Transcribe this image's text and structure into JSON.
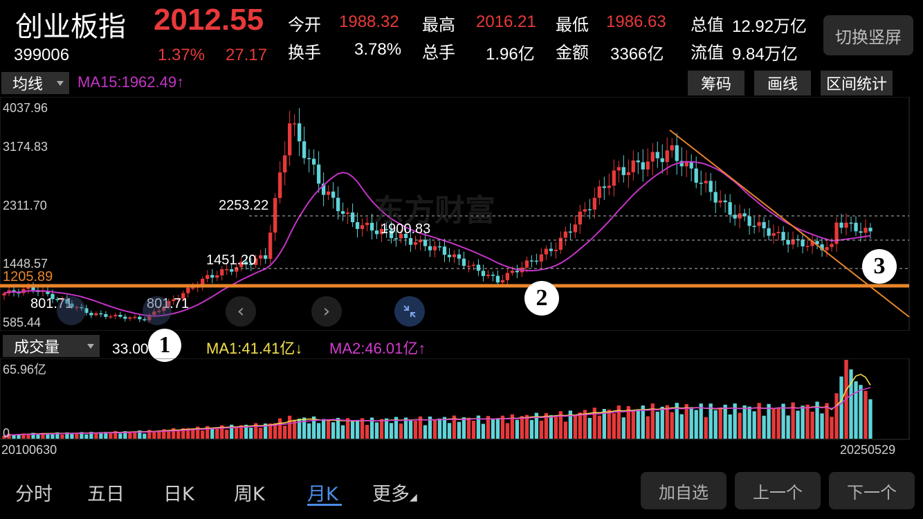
{
  "header": {
    "name": "创业板指",
    "price": "2012.55",
    "code": "399006",
    "change_pct": "1.37%",
    "change": "27.17",
    "stats": [
      {
        "label": "今开",
        "value": "1988.32",
        "red": true
      },
      {
        "label": "最高",
        "value": "2016.21",
        "red": true
      },
      {
        "label": "最低",
        "value": "1986.63",
        "red": true
      },
      {
        "label": "总值",
        "value": "12.92万亿",
        "red": false
      },
      {
        "label": "换手",
        "value": "3.78%",
        "red": false
      },
      {
        "label": "总手",
        "value": "1.96亿",
        "red": false
      },
      {
        "label": "金额",
        "value": "3366亿",
        "red": false
      },
      {
        "label": "流值",
        "value": "9.84万亿",
        "red": false
      }
    ],
    "switch_button": "切换竖屏"
  },
  "main_chart": {
    "indicator_select": "均线",
    "ma_label": "MA15:1962.49",
    "ma_arrow": "↑",
    "tools": [
      "筹码",
      "画线",
      "区间统计"
    ],
    "y_ticks": [
      "4037.96",
      "3174.83",
      "2311.70",
      "1448.57",
      "585.44"
    ],
    "support_line_label": "1205.89",
    "price_labels": [
      "2253.22",
      "1900.83",
      "1451.20",
      "801.71",
      "801.71"
    ],
    "markers": [
      "1",
      "2",
      "3"
    ],
    "watermark": "东方财富",
    "colors": {
      "up": "#e8393a",
      "down": "#5fd4d9",
      "ma": "#c534c8",
      "support": "#e8852a",
      "trend": "#e8852a"
    }
  },
  "volume_chart": {
    "indicator_select": "成交量",
    "volume_value": "33.00亿",
    "ma1_label": "MA1:41.41亿",
    "ma1_arrow": "↓",
    "ma2_label": "MA2:46.01亿",
    "ma2_arrow": "↑",
    "y_top": "65.96亿",
    "y_bottom": "0",
    "x_start": "20100630",
    "x_end": "20250529"
  },
  "bottom_tabs": [
    "分时",
    "五日",
    "日K",
    "周K",
    "月K",
    "更多"
  ],
  "active_tab": "月K",
  "bottom_buttons": [
    "加自选",
    "上一个",
    "下一个"
  ],
  "chart_data": {
    "type": "candlestick",
    "title": "",
    "frequency": "monthly",
    "x_range": [
      "20100630",
      "20250529"
    ],
    "ylim": [
      585.44,
      4037.96
    ],
    "y_ticks": [
      4037.96,
      3174.83,
      2311.7,
      1448.57,
      585.44
    ],
    "approx_close_path": [
      {
        "date": "2010-06",
        "close": 1050
      },
      {
        "date": "2010-12",
        "close": 1130
      },
      {
        "date": "2011-12",
        "close": 720
      },
      {
        "date": "2012-11",
        "close": 640
      },
      {
        "date": "2013-12",
        "close": 1310
      },
      {
        "date": "2014-12",
        "close": 1640
      },
      {
        "date": "2015-05",
        "close": 3800
      },
      {
        "date": "2015-12",
        "close": 2700
      },
      {
        "date": "2016-06",
        "close": 2180
      },
      {
        "date": "2017-12",
        "close": 1750
      },
      {
        "date": "2018-12",
        "close": 1250
      },
      {
        "date": "2019-12",
        "close": 1800
      },
      {
        "date": "2020-12",
        "close": 2960
      },
      {
        "date": "2021-12",
        "close": 3320
      },
      {
        "date": "2022-12",
        "close": 2350
      },
      {
        "date": "2023-12",
        "close": 1890
      },
      {
        "date": "2024-09",
        "close": 1780
      },
      {
        "date": "2024-10",
        "close": 2200
      },
      {
        "date": "2025-05",
        "close": 2012.55
      }
    ],
    "horizontal_lines": [
      2253.22,
      1900.83,
      1451.2,
      1205.89
    ],
    "ma15_last": 1962.49,
    "volume_ylim": [
      0,
      65.96
    ],
    "volume_last": 33.0,
    "volume_ma1_last": 41.41,
    "volume_ma2_last": 46.01
  }
}
